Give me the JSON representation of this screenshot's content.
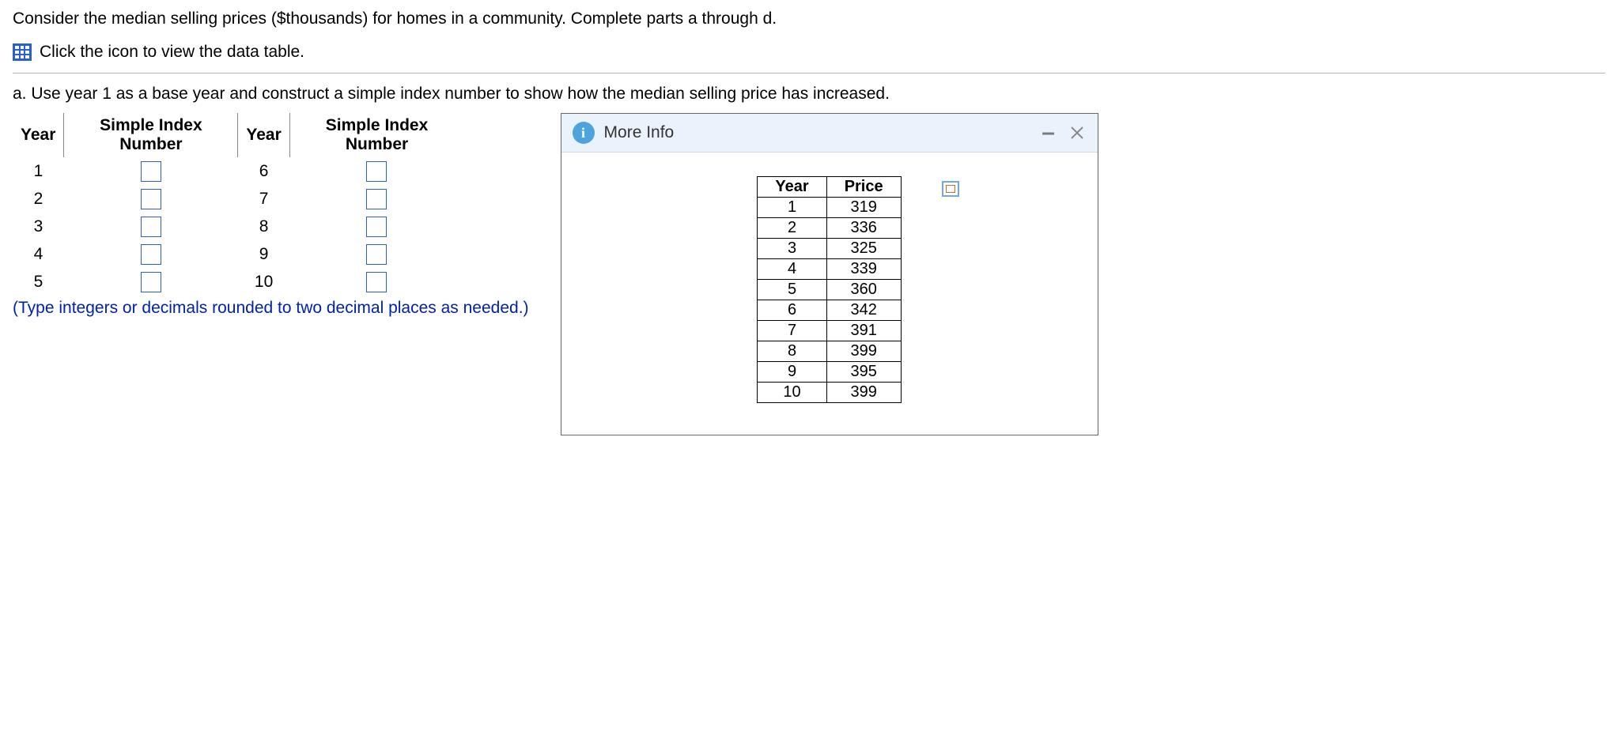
{
  "intro_text": "Consider the median selling prices ($thousands) for homes in a community. Complete parts a through d.",
  "icon_link_text": "Click the icon to view the data table.",
  "part_a_text": "a. Use year 1 as a base year and construct a simple index number to show how the median selling price has increased.",
  "index_table": {
    "headers": {
      "year": "Year",
      "sin": "Simple Index Number"
    },
    "left_years": [
      "1",
      "2",
      "3",
      "4",
      "5"
    ],
    "right_years": [
      "6",
      "7",
      "8",
      "9",
      "10"
    ]
  },
  "hint_text": "(Type integers or decimals rounded to two decimal places as needed.)",
  "modal": {
    "title": "More Info",
    "data_headers": {
      "year": "Year",
      "price": "Price"
    },
    "rows": [
      {
        "year": "1",
        "price": "319"
      },
      {
        "year": "2",
        "price": "336"
      },
      {
        "year": "3",
        "price": "325"
      },
      {
        "year": "4",
        "price": "339"
      },
      {
        "year": "5",
        "price": "360"
      },
      {
        "year": "6",
        "price": "342"
      },
      {
        "year": "7",
        "price": "391"
      },
      {
        "year": "8",
        "price": "399"
      },
      {
        "year": "9",
        "price": "395"
      },
      {
        "year": "10",
        "price": "399"
      }
    ]
  },
  "colors": {
    "link_blue": "#2a5fcf",
    "hint_blue": "#0022aa",
    "header_bg": "#eaf3fb",
    "info_bg": "#4da3dc"
  }
}
